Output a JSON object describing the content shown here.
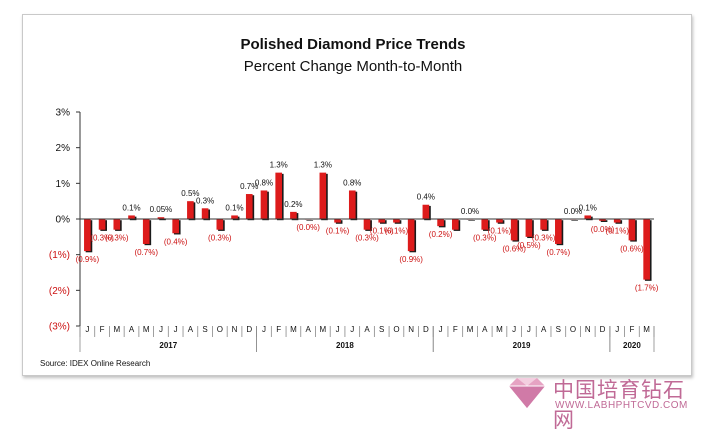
{
  "chart_data": {
    "type": "bar",
    "title": "Polished Diamond Price Trends",
    "subtitle": "Percent Change Month-to-Month",
    "source": "Source: IDEX Online Research",
    "ylim": [
      -3,
      3
    ],
    "yticks": [
      {
        "value": 3,
        "label": "3%"
      },
      {
        "value": 2,
        "label": "2%"
      },
      {
        "value": 1,
        "label": "1%"
      },
      {
        "value": 0,
        "label": "0%"
      },
      {
        "value": -1,
        "label": "(1%)"
      },
      {
        "value": -2,
        "label": "(2%)"
      },
      {
        "value": -3,
        "label": "(3%)"
      }
    ],
    "categories": [
      "J",
      "F",
      "M",
      "A",
      "M",
      "J",
      "J",
      "A",
      "S",
      "O",
      "N",
      "D",
      "J",
      "F",
      "M",
      "A",
      "M",
      "J",
      "J",
      "A",
      "S",
      "O",
      "N",
      "D",
      "J",
      "F",
      "M",
      "A",
      "M",
      "J",
      "J",
      "A",
      "S",
      "O",
      "N",
      "D",
      "J",
      "F",
      "M"
    ],
    "values": [
      -0.9,
      -0.3,
      -0.3,
      0.1,
      -0.7,
      0.05,
      -0.4,
      0.5,
      0.3,
      -0.3,
      0.1,
      0.7,
      0.8,
      1.3,
      0.2,
      0.0,
      1.3,
      -0.1,
      0.8,
      -0.3,
      -0.1,
      -0.1,
      -0.9,
      0.4,
      -0.2,
      -0.3,
      0.0,
      -0.3,
      -0.1,
      -0.6,
      -0.5,
      -0.3,
      -0.7,
      0.0,
      0.1,
      -0.05,
      -0.1,
      -0.6,
      -1.7
    ],
    "data_labels": [
      {
        "index": 0,
        "text": "(0.9%)"
      },
      {
        "index": 1,
        "text": "(0.3%)"
      },
      {
        "index": 2,
        "text": "(0.3%)"
      },
      {
        "index": 3,
        "text": "0.1%"
      },
      {
        "index": 4,
        "text": "(0.7%)"
      },
      {
        "index": 5,
        "text": "0.05%"
      },
      {
        "index": 6,
        "text": "(0.4%)"
      },
      {
        "index": 7,
        "text": "0.5%"
      },
      {
        "index": 8,
        "text": "0.3%"
      },
      {
        "index": 9,
        "text": "(0.3%)"
      },
      {
        "index": 10,
        "text": "0.1%"
      },
      {
        "index": 11,
        "text": "0.7%"
      },
      {
        "index": 12,
        "text": "0.8%"
      },
      {
        "index": 13,
        "text": "1.3%"
      },
      {
        "index": 14,
        "text": "0.2%"
      },
      {
        "index": 15,
        "text": "(0.0%)"
      },
      {
        "index": 16,
        "text": "1.3%"
      },
      {
        "index": 17,
        "text": "(0.1%)"
      },
      {
        "index": 18,
        "text": "0.8%"
      },
      {
        "index": 19,
        "text": "(0.3%)"
      },
      {
        "index": 20,
        "text": "(0.1%)"
      },
      {
        "index": 21,
        "text": "(0.1%)"
      },
      {
        "index": 22,
        "text": "(0.9%)"
      },
      {
        "index": 23,
        "text": "0.4%"
      },
      {
        "index": 24,
        "text": "(0.2%)"
      },
      {
        "index": 26,
        "text": "0.0%"
      },
      {
        "index": 27,
        "text": "(0.3%)"
      },
      {
        "index": 28,
        "text": "(0.1%)"
      },
      {
        "index": 29,
        "text": "(0.6%)"
      },
      {
        "index": 30,
        "text": "(0.5%)"
      },
      {
        "index": 31,
        "text": "(0.3%)"
      },
      {
        "index": 32,
        "text": "(0.7%)"
      },
      {
        "index": 33,
        "text": "0.0%"
      },
      {
        "index": 34,
        "text": "0.1%"
      },
      {
        "index": 35,
        "text": "(0.0%)"
      },
      {
        "index": 36,
        "text": "(0.1%)"
      },
      {
        "index": 37,
        "text": "(0.6%)"
      },
      {
        "index": 38,
        "text": "(1.7%)"
      }
    ],
    "year_groups": [
      {
        "label": "2017",
        "start": 0,
        "end": 11
      },
      {
        "label": "2018",
        "start": 12,
        "end": 23
      },
      {
        "label": "2019",
        "start": 24,
        "end": 35
      },
      {
        "label": "2020",
        "start": 36,
        "end": 38
      }
    ],
    "colors": {
      "bar": "#dd1b1b",
      "bar_shadow": "#1a1a1a",
      "negative_label": "#cc1111",
      "positive_label": "#111111"
    },
    "grid": false,
    "legend": "none"
  },
  "watermark": {
    "text": "中国培育钻石网",
    "url": "WWW.LABHPHTCVD.COM"
  }
}
